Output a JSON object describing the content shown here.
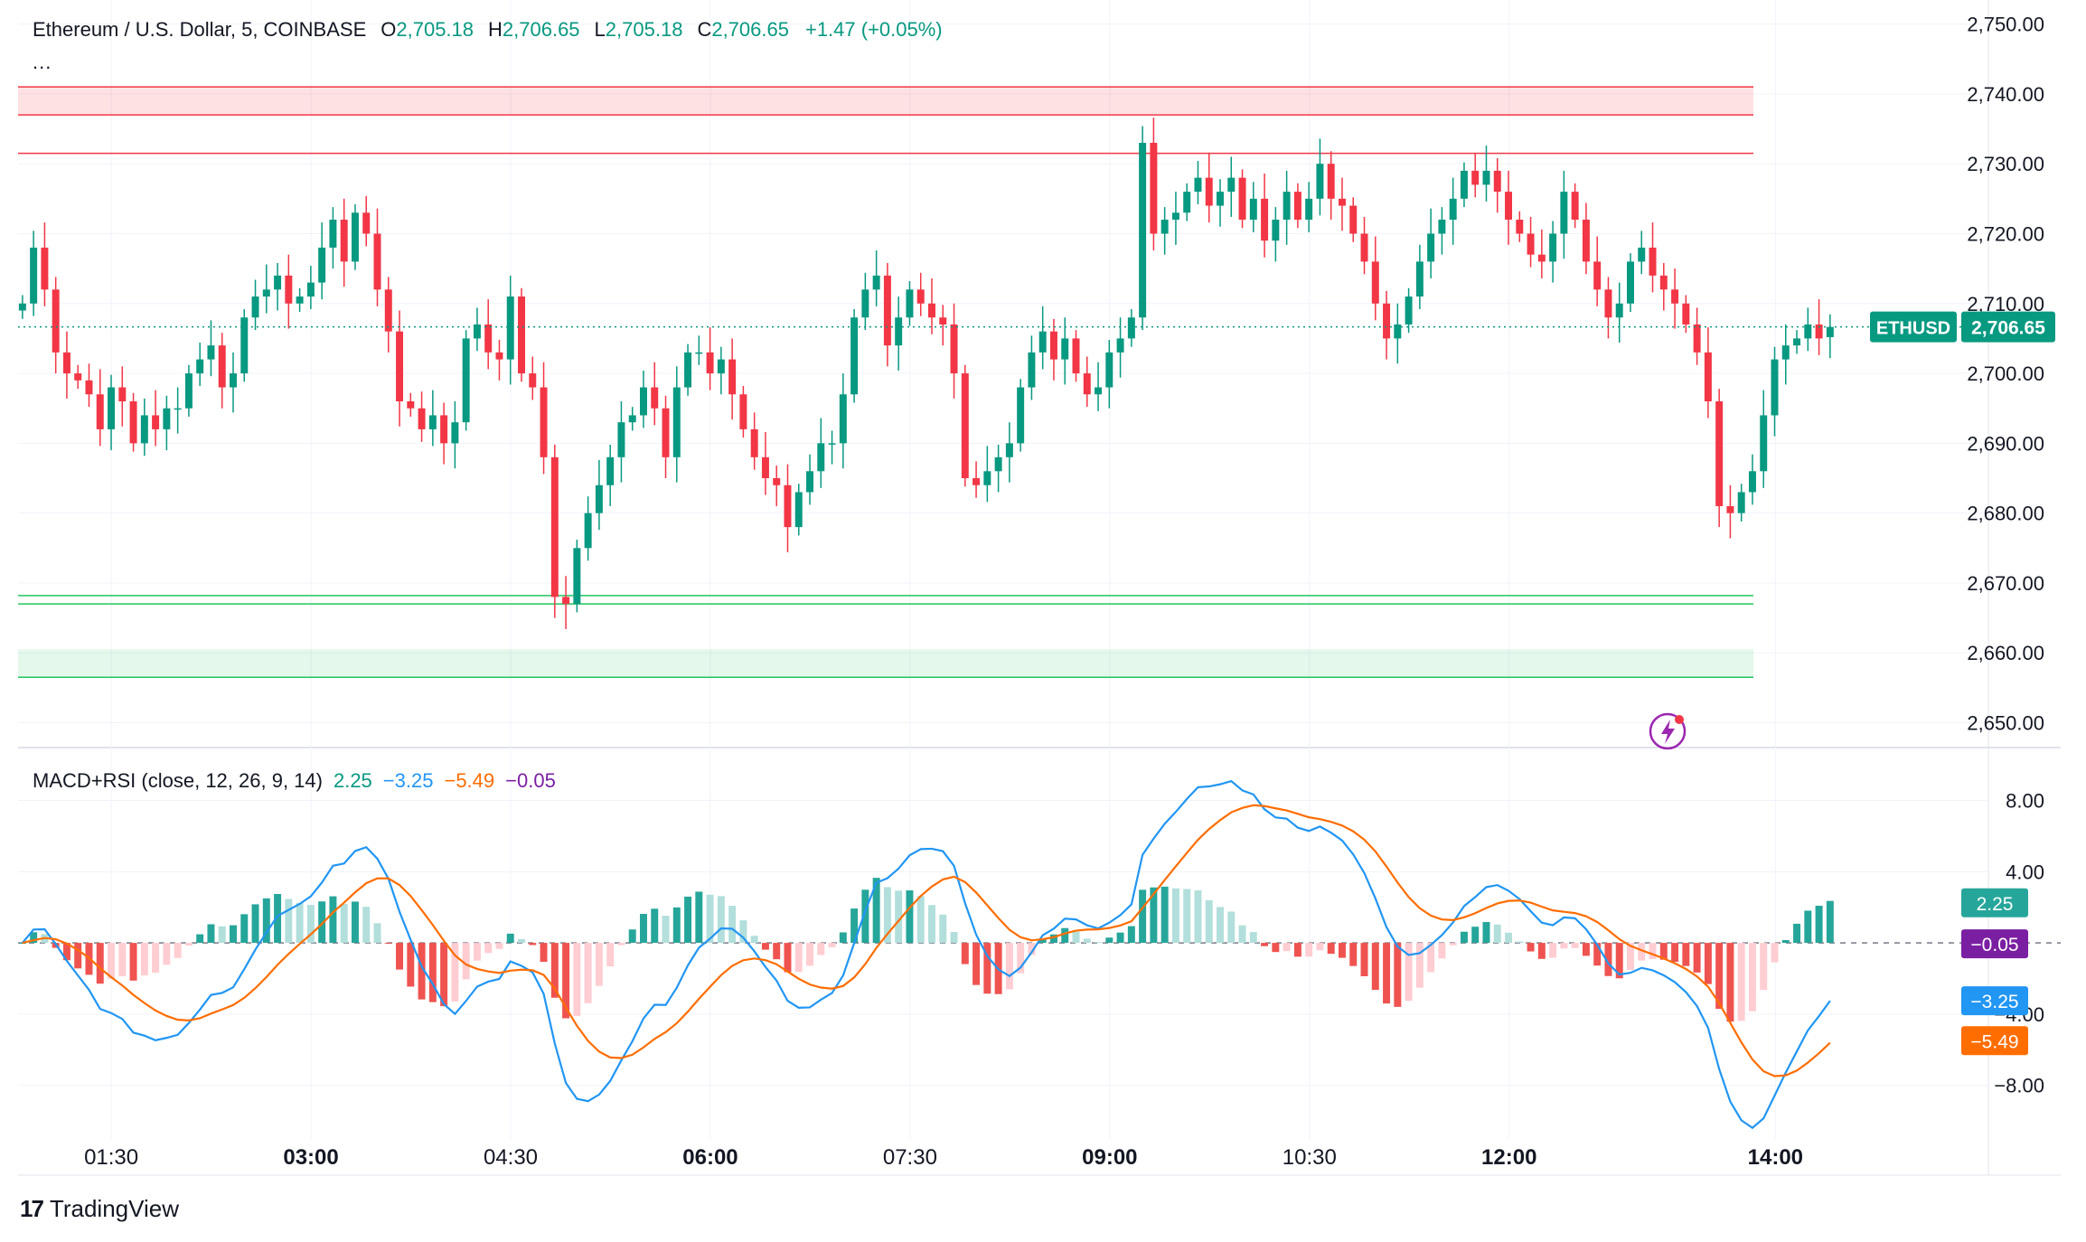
{
  "legend": {
    "symbol": "Ethereum / U.S. Dollar, 5, COINBASE",
    "open_label": "O",
    "open": "2,705.18",
    "high_label": "H",
    "high": "2,706.65",
    "low_label": "L",
    "low": "2,705.18",
    "close_label": "C",
    "close": "2,706.65",
    "change": "+1.47 (+0.05%)",
    "more": "..."
  },
  "indicator": {
    "name": "MACD+RSI (close, 12, 26, 9, 14)",
    "v1": "2.25",
    "v2": "−3.25",
    "v3": "−5.49",
    "v4": "−0.05"
  },
  "price_tag": {
    "symbol": "ETHUSD",
    "value": "2,706.65"
  },
  "indicator_tags": {
    "hist": "2.25",
    "rsi": "−0.05",
    "macd": "−3.25",
    "signal": "−5.49"
  },
  "brand": {
    "name": "TradingView",
    "logo": "tv-logo"
  },
  "colors": {
    "up": "#089981",
    "down": "#f23645",
    "hist_up": "#26a69a",
    "hist_up_light": "#b2dfdb",
    "hist_down": "#ef5350",
    "hist_down_light": "#ffcdd2",
    "macd_line": "#2196f3",
    "signal_line": "#ff6d00",
    "rsi_tag": "#7b1fa2",
    "resistance": "#f23645",
    "support": "#22c55e"
  },
  "chart_data": {
    "type": "candlestick",
    "title": "Ethereum / U.S. Dollar, 5, COINBASE",
    "timeframe": "5",
    "x_ticks": [
      "01:30",
      "03:00",
      "04:30",
      "06:00",
      "07:30",
      "09:00",
      "10:30",
      "12:00",
      "14:00"
    ],
    "bold_ticks": [
      "03:00",
      "06:00",
      "09:00",
      "12:00",
      "14:00"
    ],
    "x_tick_hours": [
      1.5,
      3,
      4.5,
      6,
      7.5,
      9,
      10.5,
      12,
      14
    ],
    "x_range_hours": [
      0.8,
      15.6
    ],
    "candle_start_hours": 0.833,
    "candle_interval_hours": 0.0833,
    "y_ticks": [
      "2,750.00",
      "2,740.00",
      "2,730.00",
      "2,720.00",
      "2,710.00",
      "2,700.00",
      "2,690.00",
      "2,680.00",
      "2,670.00",
      "2,660.00",
      "2,650.00"
    ],
    "ylim": [
      2648,
      2751.5
    ],
    "close_series": [
      2710,
      2718,
      2712,
      2703,
      2700,
      2699,
      2697,
      2692,
      2698,
      2696,
      2690,
      2694,
      2692,
      2695,
      2695,
      2700,
      2702,
      2704,
      2698,
      2700,
      2708,
      2711,
      2712,
      2714,
      2710,
      2711,
      2713,
      2718,
      2722,
      2716,
      2723,
      2720,
      2712,
      2706,
      2696,
      2695,
      2692,
      2694,
      2690,
      2693,
      2705,
      2707,
      2703,
      2702,
      2711,
      2700,
      2698,
      2688,
      2668,
      2667,
      2675,
      2680,
      2684,
      2688,
      2693,
      2694,
      2698,
      2695,
      2688,
      2698,
      2703,
      2703,
      2700,
      2702,
      2697,
      2692,
      2688,
      2685,
      2684,
      2678,
      2683,
      2686,
      2690,
      2690,
      2697,
      2708,
      2712,
      2714,
      2704,
      2708,
      2712,
      2710,
      2708,
      2707,
      2700,
      2685,
      2684,
      2686,
      2688,
      2690,
      2698,
      2703,
      2706,
      2702,
      2705,
      2700,
      2697,
      2698,
      2703,
      2705,
      2708,
      2733,
      2720,
      2722,
      2723,
      2726,
      2728,
      2724,
      2726,
      2728,
      2722,
      2725,
      2719,
      2722,
      2726,
      2722,
      2725,
      2730,
      2725,
      2724,
      2720,
      2716,
      2710,
      2705,
      2707,
      2711,
      2716,
      2720,
      2722,
      2725,
      2729,
      2727,
      2729,
      2726,
      2722,
      2720,
      2717,
      2716,
      2720,
      2726,
      2722,
      2716,
      2712,
      2708,
      2710,
      2716,
      2718,
      2714,
      2712,
      2710,
      2707,
      2703,
      2696,
      2681,
      2680,
      2683,
      2686,
      2694,
      2702,
      2704,
      2705,
      2707,
      2705,
      2707
    ],
    "open_value": 2705.18,
    "high_value": 2706.65,
    "low_value": 2705.18,
    "close_value": 2706.65,
    "change": 1.47,
    "change_pct": 0.05,
    "last_price": 2706.65,
    "resistance_zone": [
      2737,
      2741
    ],
    "resistance_line": 2731.5,
    "support_lines": [
      2668.2,
      2667
    ],
    "support_zone": [
      2656.5,
      2660.5
    ],
    "indicator": {
      "name": "MACD+RSI",
      "params": [
        12,
        26,
        9,
        14
      ],
      "y_ticks": [
        "8.00",
        "4.00",
        "−4.00",
        "−8.00"
      ],
      "ylim": [
        -10.5,
        9.8
      ],
      "macd": -3.25,
      "signal": -5.49,
      "histogram": 2.25,
      "rsi_value": -0.05
    }
  }
}
